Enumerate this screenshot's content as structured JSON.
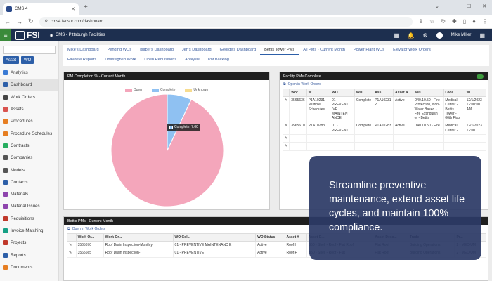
{
  "browser": {
    "tab_title": "CMS 4",
    "url": "cms4.facsur.com/dashboard"
  },
  "app": {
    "logo_text": "FSI",
    "location": "CMS - Pittsburgh Facilities",
    "user": "Mike Miller"
  },
  "sidebar": {
    "asset_btn": "Asset",
    "wo_btn": "WO",
    "items": [
      {
        "label": "Analytics",
        "color": "#3a7bd5"
      },
      {
        "label": "Dashboard",
        "color": "#2d5fa8"
      },
      {
        "label": "Work Orders",
        "color": "#444"
      },
      {
        "label": "Assets",
        "color": "#d9534f"
      },
      {
        "label": "Procedures",
        "color": "#e67e22"
      },
      {
        "label": "Procedure Schedules",
        "color": "#e67e22"
      },
      {
        "label": "Contracts",
        "color": "#27ae60"
      },
      {
        "label": "Companies",
        "color": "#555"
      },
      {
        "label": "Models",
        "color": "#555"
      },
      {
        "label": "Contacts",
        "color": "#2d5fa8"
      },
      {
        "label": "Materials",
        "color": "#8e44ad"
      },
      {
        "label": "Material Issues",
        "color": "#8e44ad"
      },
      {
        "label": "Requisitions",
        "color": "#c0392b"
      },
      {
        "label": "Invoice Matching",
        "color": "#16a085"
      },
      {
        "label": "Projects",
        "color": "#c0392b"
      },
      {
        "label": "Reports",
        "color": "#2d5fa8"
      },
      {
        "label": "Documents",
        "color": "#e67e22"
      }
    ]
  },
  "dashboard_tabs": {
    "row1": [
      "Mike's Dashboard",
      "Pending WOs",
      "Isabel's Dashboard",
      "Jen's Dashboard",
      "George's Dashboard",
      "Bettis Tower PMs",
      "All PMs - Current Month",
      "Power Plant WOs",
      "Elevator Work Orders"
    ],
    "row2": [
      "Favorite Reports",
      "Unassigned Work",
      "Open Requisitions",
      "Analysis",
      "PM Backlog"
    ],
    "active": "Bettis Tower PMs"
  },
  "pm_panel": {
    "title": "PM Completion % - Current Month",
    "legend": [
      "Open",
      "Complete",
      "Unknown"
    ],
    "tooltip": "Complete: 7.00",
    "colors": {
      "open": "#f4a6bb",
      "complete": "#8fc1f2",
      "unknown": "#f7dc8f"
    }
  },
  "chart_data": {
    "type": "pie",
    "title": "PM Completion % - Current Month",
    "categories": [
      "Open",
      "Complete",
      "Unknown"
    ],
    "values": [
      93,
      7,
      0
    ]
  },
  "facility_panel": {
    "title": "Facility PMs Complete",
    "open_link": "Open in Work Orders",
    "columns": [
      "Wor...",
      "W...",
      "WO ...",
      "WO ...",
      "Ass...",
      "Asset A...",
      "Ass...",
      "Loca...",
      "W..."
    ],
    "rows": [
      [
        "3565636",
        "P1A10231 - Multiple Schedules",
        "01 - PREVENT IVE MAINTEN ANCE",
        "Complete",
        "P1A10231 2",
        "Active",
        "D40.10.50 - Fire Protection, Non-Water Based - Fire Extinguish er - Bettis",
        "Medical Center - Bettis Tower - 06th Floor",
        "12/1/2023 12:00:00 AM"
      ],
      [
        "3565610",
        "P1A10283",
        "01 - PREVENT",
        "Complete",
        "P1A10283",
        "Active",
        "D40.10.50 - Fire",
        "Medical Center -",
        "12/1/2023 12:00"
      ],
      [
        "",
        "",
        "",
        "",
        "",
        "",
        "",
        "",
        ""
      ],
      [
        "",
        "",
        "",
        "",
        "",
        "",
        "",
        "",
        ""
      ]
    ]
  },
  "bettis_panel": {
    "title": "Bettis PMs - Current Month",
    "open_link": "Open in Work Orders",
    "columns": [
      "Work Or...",
      "Work Or...",
      "WO Col...",
      "WO Status",
      "Asset #",
      "Asset D...",
      "Asset Desc...",
      "Trade",
      "Pr..."
    ],
    "rows": [
      [
        "3565670",
        "Roof Drain Inspection-Monthly",
        "01 - PREVENTIVE MAINTENANC E",
        "Active",
        "Roof H",
        "B50 - Shell - Roof - Flat Roof",
        "Flat Roof",
        "Building Operations",
        "2 - MEDIUM"
      ],
      [
        "3565665",
        "Roof Drain Inspection-",
        "01 - PREVENTIVE",
        "Active",
        "Roof F",
        "B50 - Shell - Roof - Flat",
        "Flat Roof",
        "Building Operations",
        "2 - MEDIUM"
      ]
    ]
  },
  "overlay": {
    "text": "Streamline preventive maintenance, extend asset life cycles, and maintain 100% compliance."
  }
}
